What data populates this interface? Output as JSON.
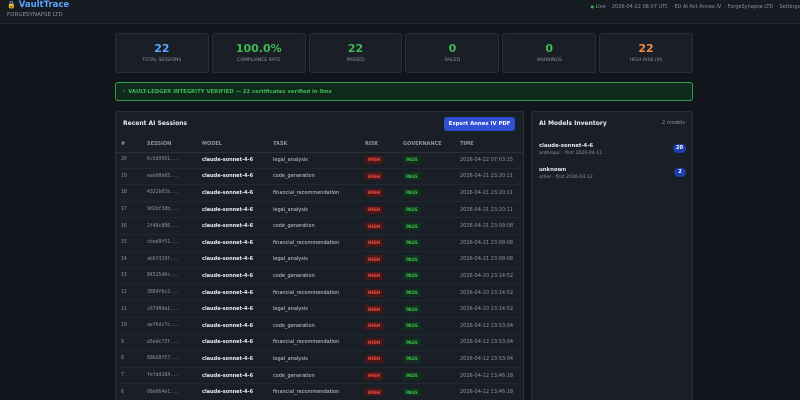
{
  "header": {
    "brand": "VaultTrace",
    "org": "FORGESYNAPSE LTD",
    "status": [
      "Live",
      "2026-04-22 08:07 UTC",
      "EU AI Act Annex IV",
      "ForgeSynapse LTD",
      "Settings"
    ]
  },
  "stats": [
    {
      "value": "22",
      "label": "TOTAL SESSIONS"
    },
    {
      "value": "100.0%",
      "label": "COMPLIANCE RATE"
    },
    {
      "value": "22",
      "label": "PASSED"
    },
    {
      "value": "0",
      "label": "FAILED"
    },
    {
      "value": "0",
      "label": "WARNINGS"
    },
    {
      "value": "22",
      "label": "HIGH RISK (III)"
    }
  ],
  "banner": "✓ VAULT-LEDGER INTEGRITY VERIFIED — 22 certificates verified in 0ms",
  "sessions": {
    "title": "Recent AI Sessions",
    "button": "Export Annex IV PDF",
    "columns": [
      "#",
      "SESSION",
      "MODEL",
      "TASK",
      "RISK",
      "GOVERNANCE",
      "TIME"
    ],
    "rows": [
      [
        20,
        "6c5d9561...",
        "claude-sonnet-4-6",
        "legal_analysis",
        "HIGH",
        "PASS",
        "2026-04-22 07:03:15"
      ],
      [
        19,
        "eedd0b65...",
        "claude-sonnet-4-6",
        "code_generation",
        "HIGH",
        "PASS",
        "2026-04-21 23:20:11"
      ],
      [
        18,
        "4322b01b...",
        "claude-sonnet-4-6",
        "financial_recommendation",
        "HIGH",
        "PASS",
        "2026-04-21 23:20:11"
      ],
      [
        17,
        "9d2bf3db...",
        "claude-sonnet-4-6",
        "legal_analysis",
        "HIGH",
        "PASS",
        "2026-04-21 23:20:11"
      ],
      [
        16,
        "2f48c886...",
        "claude-sonnet-4-6",
        "code_generation",
        "HIGH",
        "PASS",
        "2026-04-21 23:09:08"
      ],
      [
        15,
        "cbad9f51...",
        "claude-sonnet-4-6",
        "financial_recommendation",
        "HIGH",
        "PASS",
        "2026-04-21 23:09:08"
      ],
      [
        14,
        "ab5f329f...",
        "claude-sonnet-4-6",
        "legal_analysis",
        "HIGH",
        "PASS",
        "2026-04-21 23:09:08"
      ],
      [
        13,
        "84525d6c...",
        "claude-sonnet-4-6",
        "code_generation",
        "HIGH",
        "PASS",
        "2026-04-20 23:14:52"
      ],
      [
        12,
        "3884f6c2...",
        "claude-sonnet-4-6",
        "financial_recommendation",
        "HIGH",
        "PASS",
        "2026-04-20 23:14:52"
      ],
      [
        11,
        "c6740da1...",
        "claude-sonnet-4-6",
        "legal_analysis",
        "HIGH",
        "PASS",
        "2026-04-20 23:14:52"
      ],
      [
        10,
        "aef6dc7c...",
        "claude-sonnet-4-6",
        "code_generation",
        "HIGH",
        "PASS",
        "2026-04-12 13:53:04"
      ],
      [
        9,
        "a5edc73f...",
        "claude-sonnet-4-6",
        "financial_recommendation",
        "HIGH",
        "PASS",
        "2026-04-12 13:53:04"
      ],
      [
        8,
        "68b28f57...",
        "claude-sonnet-4-6",
        "legal_analysis",
        "HIGH",
        "PASS",
        "2026-04-12 13:53:04"
      ],
      [
        7,
        "fefdd184...",
        "claude-sonnet-4-6",
        "code_generation",
        "HIGH",
        "PASS",
        "2026-04-12 13:46:18"
      ],
      [
        6,
        "09a064e1...",
        "claude-sonnet-4-6",
        "financial_recommendation",
        "HIGH",
        "PASS",
        "2026-04-12 13:46:18"
      ]
    ]
  },
  "models": {
    "title": "AI Models Inventory",
    "count": "2 models",
    "items": [
      {
        "name": "claude-sonnet-4-6",
        "meta": "anthropic · first 2026-04-11",
        "count": "20"
      },
      {
        "name": "unknown",
        "meta": "other · first 2026-04-12",
        "count": "2"
      }
    ]
  }
}
